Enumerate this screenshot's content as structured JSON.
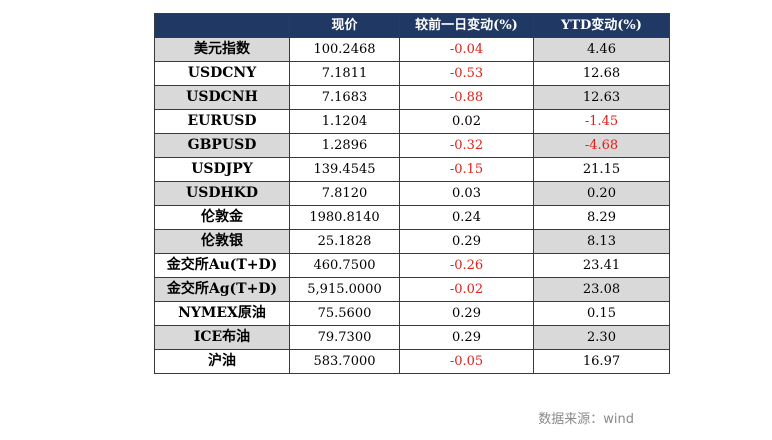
{
  "table": {
    "headers": [
      "",
      "现价",
      "较前一日变动(%)",
      "YTD变动(%)"
    ],
    "rows": [
      {
        "name": "美元指数",
        "price": "100.2468",
        "change": "-0.04",
        "ytd": "4.46"
      },
      {
        "name": "USDCNY",
        "price": "7.1811",
        "change": "-0.53",
        "ytd": "12.68"
      },
      {
        "name": "USDCNH",
        "price": "7.1683",
        "change": "-0.88",
        "ytd": "12.63"
      },
      {
        "name": "EURUSD",
        "price": "1.1204",
        "change": "0.02",
        "ytd": "-1.45"
      },
      {
        "name": "GBPUSD",
        "price": "1.2896",
        "change": "-0.32",
        "ytd": "-4.68"
      },
      {
        "name": "USDJPY",
        "price": "139.4545",
        "change": "-0.15",
        "ytd": "21.15"
      },
      {
        "name": "USDHKD",
        "price": "7.8120",
        "change": "0.03",
        "ytd": "0.20"
      },
      {
        "name": "伦敦金",
        "price": "1980.8140",
        "change": "0.24",
        "ytd": "8.29"
      },
      {
        "name": "伦敦银",
        "price": "25.1828",
        "change": "0.29",
        "ytd": "8.13"
      },
      {
        "name": "金交所Au(T+D)",
        "price": "460.7500",
        "change": "-0.26",
        "ytd": "23.41"
      },
      {
        "name": "金交所Ag(T+D)",
        "price": "5,915.0000",
        "change": "-0.02",
        "ytd": "23.08"
      },
      {
        "name": "NYMEX原油",
        "price": "75.5600",
        "change": "0.29",
        "ytd": "0.15"
      },
      {
        "name": "ICE布油",
        "price": "79.7300",
        "change": "0.29",
        "ytd": "2.30"
      },
      {
        "name": "沪油",
        "price": "583.7000",
        "change": "-0.05",
        "ytd": "16.97"
      }
    ]
  },
  "colors": {
    "header_bg": "#1f3864",
    "shade": "#d9d9d9",
    "negative": "#e0201b"
  },
  "source": "数据来源：wind"
}
